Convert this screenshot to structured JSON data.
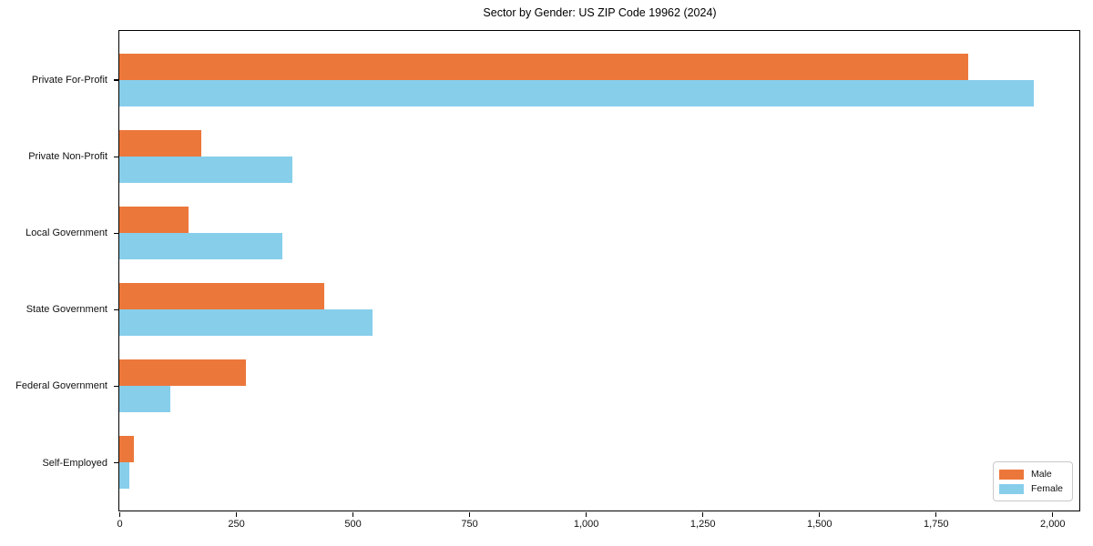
{
  "chart_data": {
    "type": "bar",
    "orientation": "horizontal",
    "title": "Sector by Gender: US ZIP Code 19962 (2024)",
    "categories": [
      "Private For-Profit",
      "Private Non-Profit",
      "Local Government",
      "State Government",
      "Federal Government",
      "Self-Employed"
    ],
    "series": [
      {
        "name": "Male",
        "color": "#ec773b",
        "values": [
          1820,
          175,
          148,
          440,
          272,
          31
        ]
      },
      {
        "name": "Female",
        "color": "#87ceeb",
        "values": [
          1960,
          370,
          350,
          542,
          110,
          21
        ]
      }
    ],
    "xlim": [
      0,
      2058
    ],
    "xticks": [
      0,
      250,
      500,
      750,
      1000,
      1250,
      1500,
      1750,
      2000
    ],
    "xtick_labels": [
      "0",
      "250",
      "500",
      "750",
      "1,000",
      "1,250",
      "1,500",
      "1,750",
      "2,000"
    ],
    "grid": false,
    "legend_position": "lower right",
    "axis_color": "#000000",
    "background_color": "#ffffff"
  }
}
